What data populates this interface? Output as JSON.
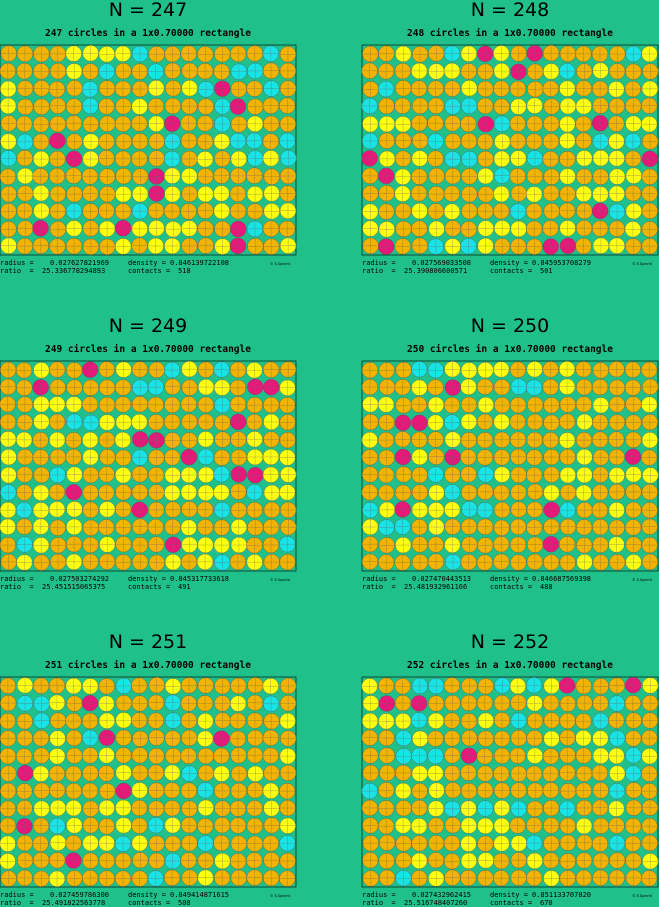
{
  "panels": [
    {
      "title": "N = 247",
      "subtitle": "247 circles in a 1x0.70000 rectangle",
      "radius": "0.027627821969",
      "density": "0.846139722108",
      "ratio": "25.336778294893",
      "contacts": "518"
    },
    {
      "title": "N = 248",
      "subtitle": "248 circles in a 1x0.70000 rectangle",
      "radius": "0.027569033508",
      "density": "0.845953708279",
      "ratio": "25.390806600571",
      "contacts": "501"
    },
    {
      "title": "N = 249",
      "subtitle": "249 circles in a 1x0.70000 rectangle",
      "radius": "0.027503274292",
      "density": "0.845317733618",
      "ratio": "25.451515065375",
      "contacts": "491"
    },
    {
      "title": "N = 250",
      "subtitle": "250 circles in a 1x0.70000 rectangle",
      "radius": "0.027470443513",
      "density": "0.846687569398",
      "ratio": "25.481932961166",
      "contacts": "488"
    },
    {
      "title": "N = 251",
      "subtitle": "251 circles in a 1x0.70000 rectangle",
      "radius": "0.027459786300",
      "density": "0.849414871615",
      "ratio": "25.491822563778",
      "contacts": "508"
    },
    {
      "title": "N = 252",
      "subtitle": "252 circles in a 1x0.70000 rectangle",
      "radius": "0.027432962415",
      "density": "0.851133707820",
      "ratio": "25.516748407260",
      "contacts": "670"
    }
  ],
  "labels": {
    "radius": "radius =",
    "density": "density =",
    "ratio": "ratio  =",
    "contacts": "contacts ="
  },
  "credit": "© E.Specht"
}
